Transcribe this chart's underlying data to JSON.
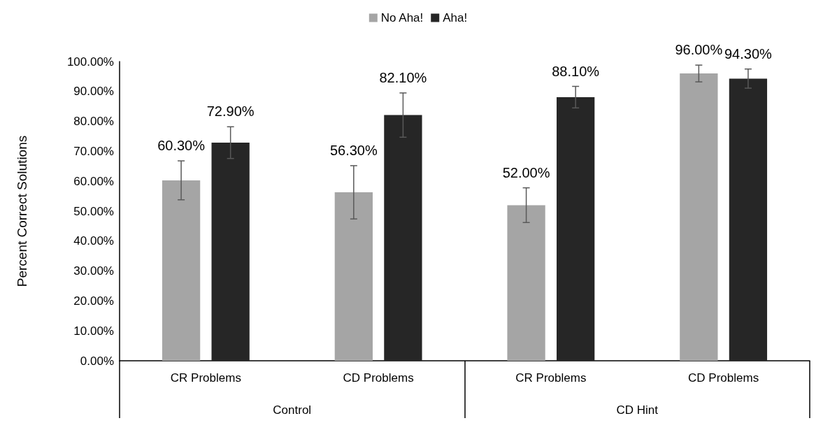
{
  "chart_data": {
    "type": "bar",
    "ylabel": "Percent Correct Solutions",
    "categories": [
      "CR Problems",
      "CD Problems",
      "CR Problems",
      "CD Problems"
    ],
    "annotations": [
      "Control",
      "CD Hint"
    ],
    "series": [
      {
        "name": "No Aha!",
        "color": "#a5a5a5",
        "values": [
          60.3,
          56.3,
          52.0,
          96.0
        ],
        "errors": [
          6.5,
          8.9,
          5.8,
          2.8
        ],
        "value_labels": [
          "60.30%",
          "56.30%",
          "52.00%",
          "96.00%"
        ]
      },
      {
        "name": "Aha!",
        "color": "#262626",
        "values": [
          72.9,
          82.1,
          88.1,
          94.3
        ],
        "errors": [
          5.3,
          7.4,
          3.6,
          3.2
        ],
        "value_labels": [
          "72.90%",
          "82.10%",
          "88.10%",
          "94.30%"
        ]
      }
    ],
    "ylim": [
      0,
      100
    ],
    "yticks": [
      {
        "value": 0,
        "label": "0.00%"
      },
      {
        "value": 10,
        "label": "10.00%"
      },
      {
        "value": 20,
        "label": "20.00%"
      },
      {
        "value": 30,
        "label": "30.00%"
      },
      {
        "value": 40,
        "label": "40.00%"
      },
      {
        "value": 50,
        "label": "50.00%"
      },
      {
        "value": 60,
        "label": "60.00%"
      },
      {
        "value": 70,
        "label": "70.00%"
      },
      {
        "value": 80,
        "label": "80.00%"
      },
      {
        "value": 90,
        "label": "90.00%"
      },
      {
        "value": 100,
        "label": "100.00%"
      }
    ],
    "grid": false,
    "legend": "top"
  }
}
